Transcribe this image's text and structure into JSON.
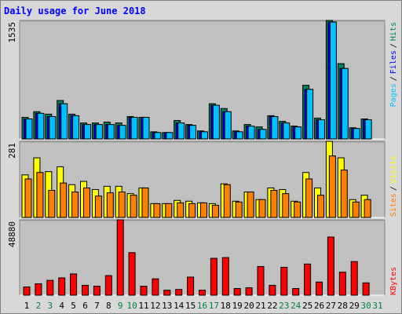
{
  "chart_data": [
    {
      "type": "bar",
      "title": "Daily usage for June 2018",
      "ylim": [
        0,
        1535
      ],
      "yticks": [
        1535
      ],
      "legend_separator": "/",
      "series": [
        {
          "name": "Hits",
          "color": "#008060",
          "values": [
            280,
            353,
            321,
            498,
            321,
            207,
            207,
            218,
            207,
            290,
            280,
            93,
            83,
            239,
            187,
            104,
            456,
            394,
            104,
            187,
            156,
            301,
            228,
            166,
            695,
            270,
            1535,
            975,
            145,
            259,
            null
          ]
        },
        {
          "name": "Files",
          "color": "#0000ff",
          "values": [
            259,
            332,
            290,
            456,
            301,
            187,
            187,
            187,
            176,
            280,
            280,
            83,
            83,
            207,
            176,
            93,
            436,
            353,
            93,
            166,
            124,
            290,
            207,
            156,
            643,
            249,
            1514,
            913,
            135,
            249,
            null
          ]
        },
        {
          "name": "Pages",
          "color": "#00c0ff",
          "values": [
            259,
            332,
            290,
            456,
            301,
            187,
            187,
            187,
            176,
            280,
            280,
            83,
            83,
            207,
            176,
            93,
            436,
            353,
            93,
            166,
            124,
            290,
            207,
            156,
            643,
            249,
            1514,
            913,
            135,
            249,
            null
          ]
        }
      ]
    },
    {
      "type": "bar",
      "ylim": [
        0,
        281
      ],
      "yticks": [
        281
      ],
      "legend_separator": "/",
      "series": [
        {
          "name": "Visits",
          "color": "#ffff00",
          "values": [
            157,
            220,
            169,
            187,
            121,
            133,
            103,
            115,
            115,
            88,
            109,
            51,
            51,
            63,
            60,
            54,
            51,
            124,
            60,
            94,
            66,
            109,
            103,
            60,
            166,
            109,
            281,
            220,
            66,
            82,
            null
          ]
        },
        {
          "name": "Sites",
          "color": "#ff8000",
          "values": [
            142,
            166,
            100,
            127,
            94,
            109,
            79,
            91,
            94,
            82,
            109,
            51,
            51,
            54,
            51,
            54,
            45,
            121,
            57,
            94,
            66,
            100,
            88,
            57,
            142,
            82,
            227,
            175,
            57,
            66,
            null
          ]
        }
      ]
    },
    {
      "type": "bar",
      "ylim": [
        0,
        48880
      ],
      "yticks": [
        48880
      ],
      "categories": [
        "1",
        "2",
        "3",
        "4",
        "5",
        "6",
        "7",
        "8",
        "9",
        "10",
        "11",
        "12",
        "13",
        "14",
        "15",
        "16",
        "17",
        "18",
        "19",
        "20",
        "21",
        "22",
        "23",
        "24",
        "25",
        "26",
        "27",
        "28",
        "29",
        "30",
        "31"
      ],
      "category_colors": [
        "#000000",
        "#008040",
        "#008040",
        "#000000",
        "#000000",
        "#000000",
        "#000000",
        "#000000",
        "#008040",
        "#008040",
        "#000000",
        "#000000",
        "#000000",
        "#000000",
        "#000000",
        "#008040",
        "#008040",
        "#000000",
        "#000000",
        "#000000",
        "#000000",
        "#000000",
        "#008040",
        "#008040",
        "#000000",
        "#000000",
        "#000000",
        "#000000",
        "#000000",
        "#008040",
        "#008040"
      ],
      "series": [
        {
          "name": "KBytes",
          "color": "#ff0000",
          "values": [
            5300,
            7400,
            9600,
            11200,
            13800,
            6400,
            5800,
            12700,
            48880,
            27600,
            5800,
            10600,
            3200,
            3700,
            11700,
            3200,
            23900,
            24400,
            4300,
            4800,
            18600,
            6400,
            18100,
            4300,
            20200,
            8500,
            37700,
            14900,
            21800,
            8000,
            null
          ]
        }
      ]
    }
  ]
}
